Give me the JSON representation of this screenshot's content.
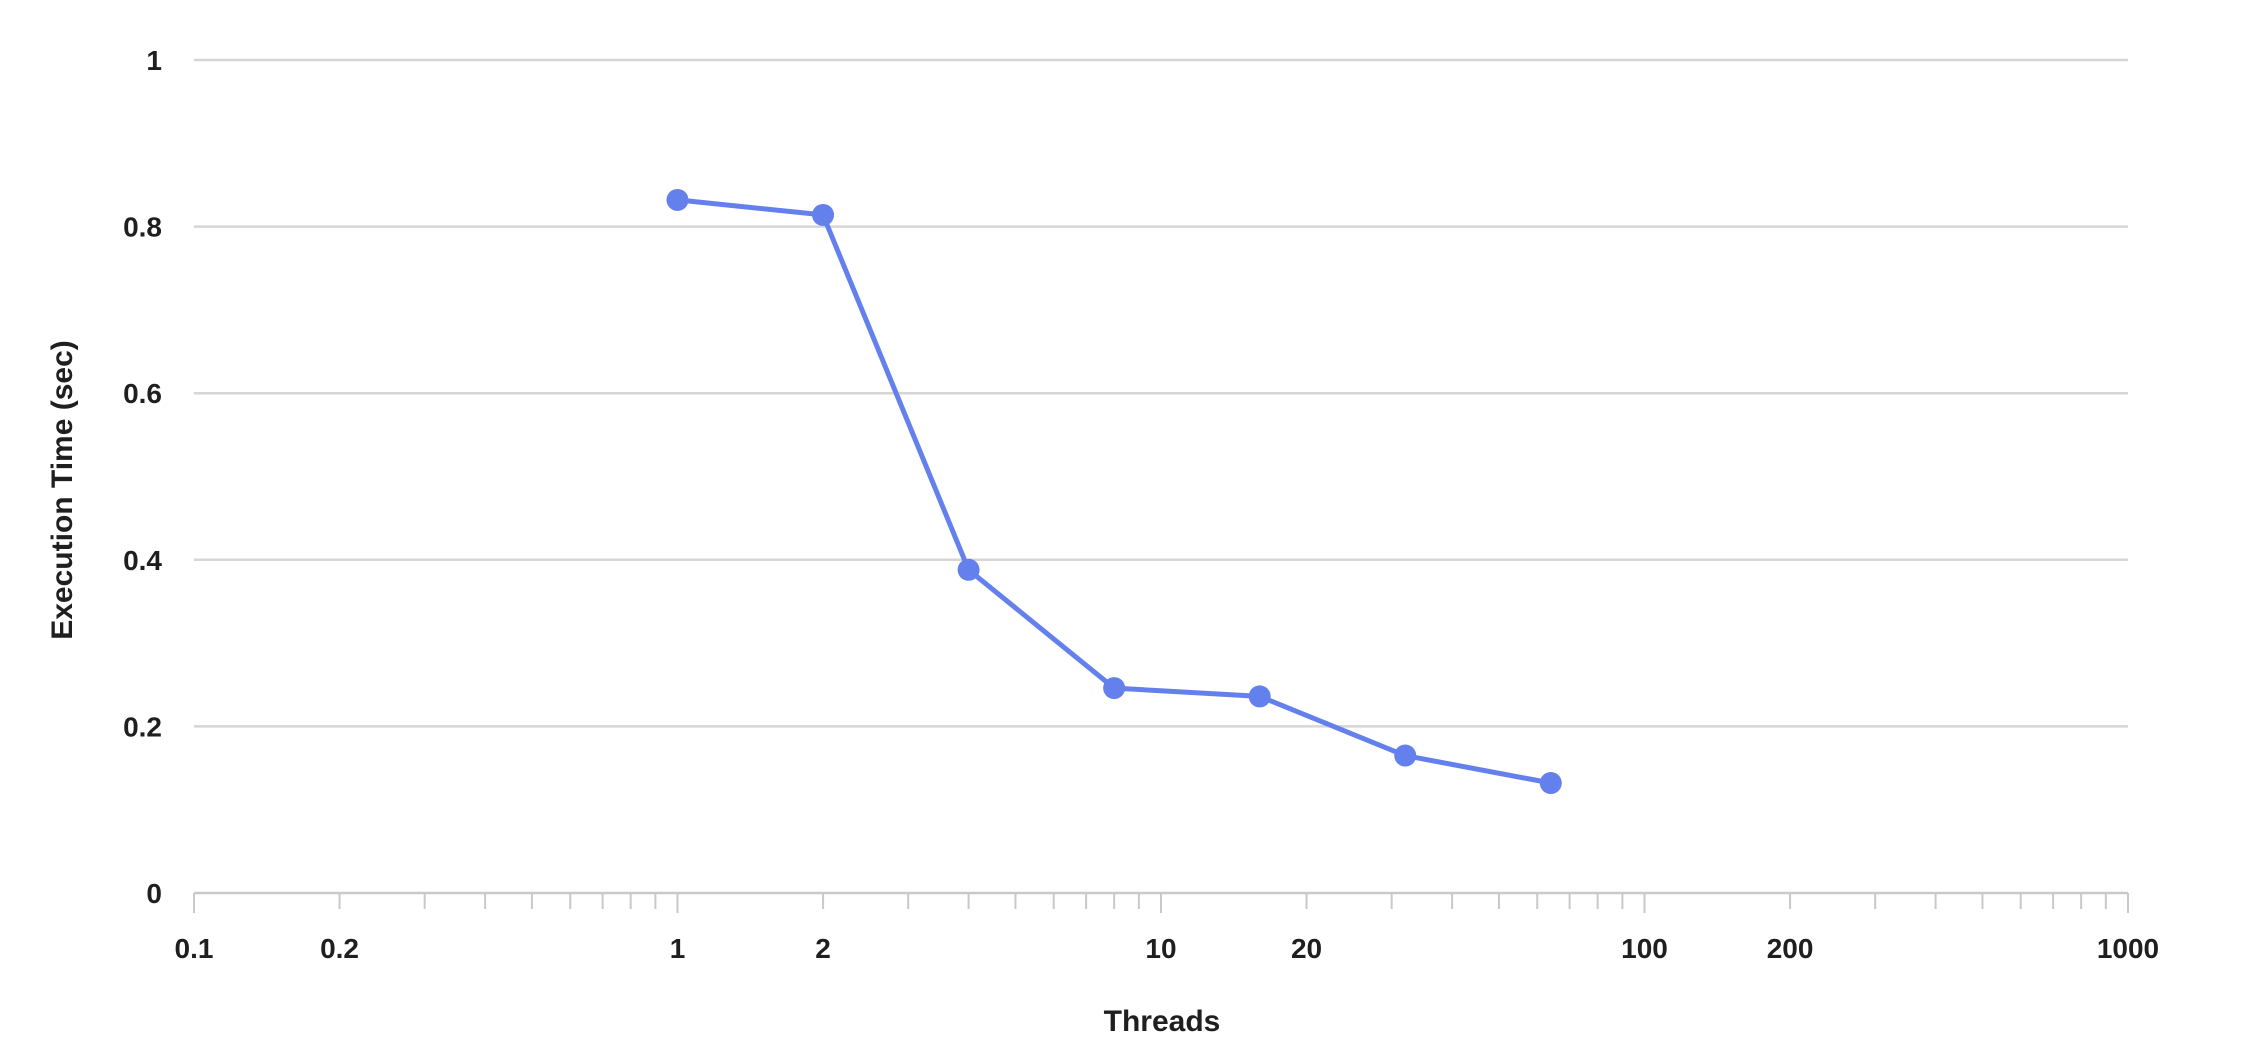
{
  "chart_data": {
    "type": "line",
    "title": "",
    "xlabel": "Threads",
    "ylabel": "Execution Time (sec)",
    "x_scale": "log",
    "xlim": [
      0.1,
      1000
    ],
    "ylim": [
      0,
      1
    ],
    "grid": true,
    "x_tick_labels": [
      "0.1",
      "0.2",
      "1",
      "2",
      "10",
      "20",
      "100",
      "200",
      "1000"
    ],
    "y_tick_labels": [
      "0",
      "0.2",
      "0.4",
      "0.6",
      "0.8",
      "1"
    ],
    "series": [
      {
        "x": [
          1,
          2,
          4,
          8,
          16,
          32,
          64
        ],
        "values": [
          0.832,
          0.814,
          0.388,
          0.246,
          0.236,
          0.165,
          0.132
        ]
      }
    ],
    "colors": {
      "line": "#6480ec",
      "grid": "#d6d6d6",
      "axis": "#c9c9c9",
      "text": "#1f1f1f"
    }
  }
}
